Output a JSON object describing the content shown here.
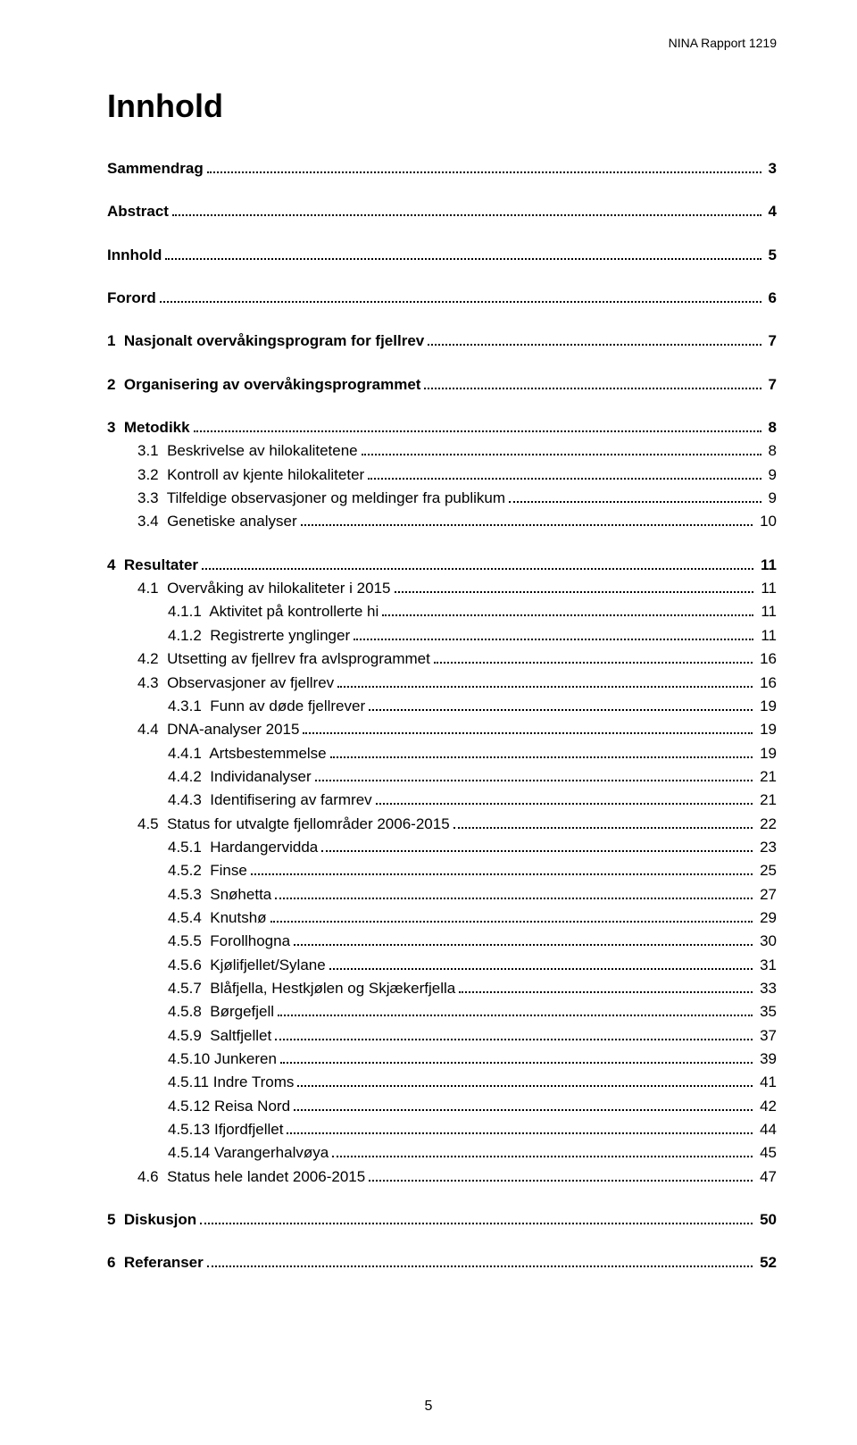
{
  "header": {
    "report_label": "NINA Rapport 1219"
  },
  "title": "Innhold",
  "page_number": "5",
  "toc": [
    {
      "label": "Sammendrag",
      "page": "3",
      "bold": true,
      "indent": 0,
      "gap_after": true
    },
    {
      "label": "Abstract",
      "page": "4",
      "bold": true,
      "indent": 0,
      "gap_after": true
    },
    {
      "label": "Innhold",
      "page": "5",
      "bold": true,
      "indent": 0,
      "gap_after": true
    },
    {
      "label": "Forord",
      "page": "6",
      "bold": true,
      "indent": 0,
      "gap_after": true
    },
    {
      "label": "1  Nasjonalt overvåkingsprogram for fjellrev",
      "page": "7",
      "bold": true,
      "indent": 0,
      "gap_after": true
    },
    {
      "label": "2  Organisering av overvåkingsprogrammet",
      "page": "7",
      "bold": true,
      "indent": 0,
      "gap_after": true
    },
    {
      "label": "3  Metodikk",
      "page": "8",
      "bold": true,
      "indent": 0
    },
    {
      "label": "3.1  Beskrivelse av hilokalitetene",
      "page": "8",
      "bold": false,
      "indent": 1
    },
    {
      "label": "3.2  Kontroll av kjente hilokaliteter",
      "page": "9",
      "bold": false,
      "indent": 1
    },
    {
      "label": "3.3  Tilfeldige observasjoner og meldinger fra publikum",
      "page": "9",
      "bold": false,
      "indent": 1
    },
    {
      "label": "3.4  Genetiske analyser",
      "page": "10",
      "bold": false,
      "indent": 1,
      "gap_after": true
    },
    {
      "label": "4  Resultater",
      "page": "11",
      "bold": true,
      "indent": 0
    },
    {
      "label": "4.1  Overvåking av hilokaliteter i 2015",
      "page": "11",
      "bold": false,
      "indent": 1
    },
    {
      "label": "4.1.1  Aktivitet på kontrollerte hi",
      "page": "11",
      "bold": false,
      "indent": 2
    },
    {
      "label": "4.1.2  Registrerte ynglinger",
      "page": "11",
      "bold": false,
      "indent": 2
    },
    {
      "label": "4.2  Utsetting av fjellrev fra avlsprogrammet",
      "page": "16",
      "bold": false,
      "indent": 1
    },
    {
      "label": "4.3  Observasjoner av fjellrev",
      "page": "16",
      "bold": false,
      "indent": 1
    },
    {
      "label": "4.3.1  Funn av døde fjellrever",
      "page": "19",
      "bold": false,
      "indent": 2
    },
    {
      "label": "4.4  DNA-analyser 2015",
      "page": "19",
      "bold": false,
      "indent": 1
    },
    {
      "label": "4.4.1  Artsbestemmelse",
      "page": "19",
      "bold": false,
      "indent": 2
    },
    {
      "label": "4.4.2  Individanalyser",
      "page": "21",
      "bold": false,
      "indent": 2
    },
    {
      "label": "4.4.3  Identifisering av farmrev",
      "page": "21",
      "bold": false,
      "indent": 2
    },
    {
      "label": "4.5  Status for utvalgte fjellområder 2006-2015",
      "page": "22",
      "bold": false,
      "indent": 1
    },
    {
      "label": "4.5.1  Hardangervidda",
      "page": "23",
      "bold": false,
      "indent": 2
    },
    {
      "label": "4.5.2  Finse",
      "page": "25",
      "bold": false,
      "indent": 2
    },
    {
      "label": "4.5.3  Snøhetta",
      "page": "27",
      "bold": false,
      "indent": 2
    },
    {
      "label": "4.5.4  Knutshø",
      "page": "29",
      "bold": false,
      "indent": 2
    },
    {
      "label": "4.5.5  Forollhogna",
      "page": "30",
      "bold": false,
      "indent": 2
    },
    {
      "label": "4.5.6  Kjølifjellet/Sylane",
      "page": "31",
      "bold": false,
      "indent": 2
    },
    {
      "label": "4.5.7  Blåfjella, Hestkjølen og Skjækerfjella",
      "page": "33",
      "bold": false,
      "indent": 2
    },
    {
      "label": "4.5.8  Børgefjell",
      "page": "35",
      "bold": false,
      "indent": 2
    },
    {
      "label": "4.5.9  Saltfjellet",
      "page": "37",
      "bold": false,
      "indent": 2
    },
    {
      "label": "4.5.10 Junkeren",
      "page": "39",
      "bold": false,
      "indent": 2
    },
    {
      "label": "4.5.11 Indre Troms",
      "page": "41",
      "bold": false,
      "indent": 2
    },
    {
      "label": "4.5.12 Reisa Nord",
      "page": "42",
      "bold": false,
      "indent": 2
    },
    {
      "label": "4.5.13 Ifjordfjellet",
      "page": "44",
      "bold": false,
      "indent": 2
    },
    {
      "label": "4.5.14 Varangerhalvøya",
      "page": "45",
      "bold": false,
      "indent": 2
    },
    {
      "label": "4.6  Status hele landet 2006-2015",
      "page": "47",
      "bold": false,
      "indent": 1,
      "gap_after": true
    },
    {
      "label": "5  Diskusjon",
      "page": "50",
      "bold": true,
      "indent": 0,
      "gap_after": true
    },
    {
      "label": "6  Referanser",
      "page": "52",
      "bold": true,
      "indent": 0
    }
  ]
}
